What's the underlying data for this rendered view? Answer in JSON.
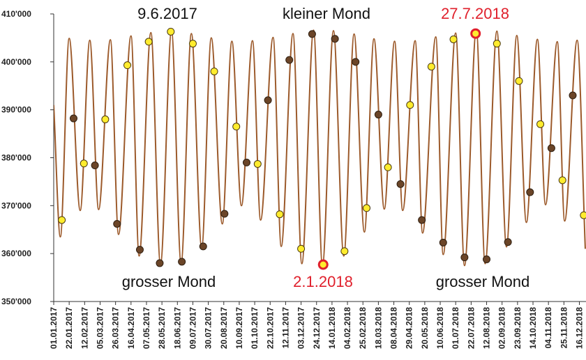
{
  "chart_data": {
    "type": "line",
    "xlim": [
      0,
      723
    ],
    "ylim": [
      350000,
      410000
    ],
    "yticks": [
      {
        "value": 350000,
        "label": "350'000"
      },
      {
        "value": 360000,
        "label": "360'000"
      },
      {
        "value": 370000,
        "label": "370'000"
      },
      {
        "value": 380000,
        "label": "380'000"
      },
      {
        "value": 390000,
        "label": "390'000"
      },
      {
        "value": 400000,
        "label": "400'000"
      },
      {
        "value": 410000,
        "label": "410'000"
      }
    ],
    "xticks": [
      {
        "value": 0,
        "label": "01.01.2017"
      },
      {
        "value": 21,
        "label": "22.01.2017"
      },
      {
        "value": 42,
        "label": "12.02.2017"
      },
      {
        "value": 63,
        "label": "05.03.2017"
      },
      {
        "value": 84,
        "label": "26.03.2017"
      },
      {
        "value": 105,
        "label": "16.04.2017"
      },
      {
        "value": 126,
        "label": "07.05.2017"
      },
      {
        "value": 147,
        "label": "28.05.2017"
      },
      {
        "value": 168,
        "label": "18.06.2017"
      },
      {
        "value": 189,
        "label": "09.07.2017"
      },
      {
        "value": 210,
        "label": "30.07.2017"
      },
      {
        "value": 231,
        "label": "20.08.2017"
      },
      {
        "value": 252,
        "label": "10.09.2017"
      },
      {
        "value": 273,
        "label": "01.10.2017"
      },
      {
        "value": 294,
        "label": "22.10.2017"
      },
      {
        "value": 315,
        "label": "12.11.2017"
      },
      {
        "value": 336,
        "label": "03.12.2017"
      },
      {
        "value": 357,
        "label": "24.12.2017"
      },
      {
        "value": 378,
        "label": "14.01.2018"
      },
      {
        "value": 399,
        "label": "04.02.2018"
      },
      {
        "value": 420,
        "label": "25.02.2018"
      },
      {
        "value": 441,
        "label": "18.03.2018"
      },
      {
        "value": 462,
        "label": "08.04.2018"
      },
      {
        "value": 483,
        "label": "29.04.2018"
      },
      {
        "value": 504,
        "label": "20.05.2018"
      },
      {
        "value": 525,
        "label": "10.06.2018"
      },
      {
        "value": 546,
        "label": "01.07.2018"
      },
      {
        "value": 567,
        "label": "22.07.2018"
      },
      {
        "value": 588,
        "label": "12.08.2018"
      },
      {
        "value": 609,
        "label": "02.09.2018"
      },
      {
        "value": 630,
        "label": "23.09.2018"
      },
      {
        "value": 651,
        "label": "14.10.2018"
      },
      {
        "value": 672,
        "label": "04.11.2018"
      },
      {
        "value": 693,
        "label": "25.11.2018"
      },
      {
        "value": 714,
        "label": "16.12.2018"
      }
    ],
    "series": [
      {
        "color": "#9c5a2b",
        "x": [
          0,
          9,
          21,
          36,
          49,
          61,
          77,
          88,
          105,
          116,
          132,
          145,
          160,
          173,
          187,
          201,
          214,
          229,
          242,
          255,
          270,
          281,
          298,
          309,
          325,
          337,
          353,
          365,
          380,
          394,
          408,
          422,
          435,
          449,
          463,
          474,
          491,
          501,
          519,
          529,
          546,
          558,
          574,
          586,
          602,
          615,
          629,
          642,
          657,
          668,
          684,
          694,
          711,
          722
        ],
        "values": [
          391000,
          363500,
          404900,
          369000,
          404500,
          369200,
          404600,
          364000,
          405400,
          359500,
          406100,
          357800,
          406400,
          358000,
          405900,
          361200,
          405000,
          366200,
          404300,
          370000,
          404400,
          367000,
          405100,
          361500,
          405900,
          357900,
          406600,
          357500,
          406500,
          359500,
          405800,
          364500,
          404800,
          369300,
          404300,
          369000,
          404400,
          364300,
          405200,
          359800,
          406000,
          357500,
          406700,
          357900,
          406400,
          361400,
          405500,
          366500,
          404700,
          370200,
          404200,
          366800,
          404500,
          361000
        ]
      },
      {
        "type": "scatter",
        "color": "#ffec2e",
        "stroke": "#4a3a10",
        "x": [
          11,
          41,
          70,
          100,
          129,
          159,
          189,
          218,
          248,
          277,
          307,
          336,
          395,
          425,
          454,
          484,
          513,
          543,
          602,
          632,
          661,
          691,
          720
        ],
        "values": [
          367000,
          378800,
          388000,
          399300,
          404200,
          406300,
          403800,
          398000,
          386500,
          378700,
          368200,
          361000,
          360500,
          369500,
          378000,
          391000,
          399000,
          404700,
          403800,
          396000,
          387000,
          375300,
          368000
        ]
      },
      {
        "type": "scatter",
        "color": "#6b4528",
        "stroke": "#2e1e10",
        "x": [
          27,
          56,
          86,
          117,
          144,
          174,
          203,
          232,
          262,
          291,
          320,
          351,
          382,
          410,
          441,
          471,
          500,
          529,
          558,
          588,
          617,
          647,
          676,
          705
        ],
        "values": [
          388200,
          378400,
          366200,
          360800,
          358000,
          358300,
          361500,
          368300,
          379000,
          392000,
          400400,
          405800,
          404800,
          400000,
          389000,
          374500,
          367000,
          362300,
          359200,
          358800,
          362400,
          372800,
          382000,
          393000
        ]
      },
      {
        "type": "scatter",
        "color": "#ffec2e",
        "stroke": "#e0202c",
        "x": [
          366,
          573
        ],
        "values": [
          357700,
          405900
        ]
      }
    ],
    "annotations": [
      {
        "text": "9.6.2017",
        "color": "#111111"
      },
      {
        "text": "kleiner Mond",
        "color": "#111111"
      },
      {
        "text": "27.7.2018",
        "color": "#e0202c"
      },
      {
        "text": "grosser Mond",
        "color": "#111111"
      },
      {
        "text": "2.1.2018",
        "color": "#e0202c"
      },
      {
        "text": "grosser Mond",
        "color": "#111111"
      }
    ]
  }
}
